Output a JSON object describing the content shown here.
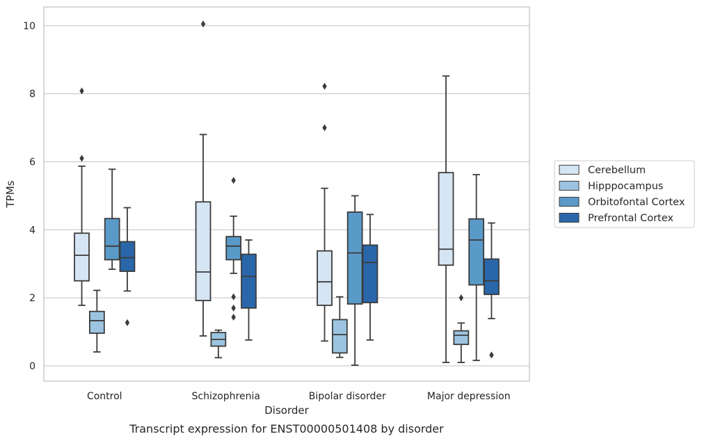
{
  "chart_data": {
    "type": "boxplot",
    "xlabel": "Disorder",
    "ylabel": "TPMs",
    "caption": "Transcript expression for ENST00000501408 by disorder",
    "ylim": [
      -0.45,
      10.55
    ],
    "yticks": [
      0,
      2,
      4,
      6,
      8,
      10
    ],
    "grid": "horizontal",
    "legend_position": "right",
    "categories": [
      "Control",
      "Schizophrenia",
      "Bipolar disorder",
      "Major depression"
    ],
    "series": [
      {
        "name": "Cerebellum",
        "color": "#d6e5f4",
        "boxes": [
          {
            "whislo": 1.78,
            "q1": 2.5,
            "med": 3.25,
            "q3": 3.9,
            "whishi": 5.87,
            "fliers": [
              8.08,
              6.1
            ]
          },
          {
            "whislo": 0.88,
            "q1": 1.92,
            "med": 2.76,
            "q3": 4.82,
            "whishi": 6.8,
            "fliers": [
              10.05
            ]
          },
          {
            "whislo": 0.73,
            "q1": 1.78,
            "med": 2.47,
            "q3": 3.38,
            "whishi": 5.22,
            "fliers": [
              8.22,
              7.0
            ]
          },
          {
            "whislo": 0.1,
            "q1": 2.96,
            "med": 3.43,
            "q3": 5.68,
            "whishi": 8.52,
            "fliers": []
          }
        ]
      },
      {
        "name": "Hipppocampus",
        "color": "#9cc4e0",
        "boxes": [
          {
            "whislo": 0.41,
            "q1": 0.96,
            "med": 1.33,
            "q3": 1.6,
            "whishi": 2.22,
            "fliers": []
          },
          {
            "whislo": 0.24,
            "q1": 0.58,
            "med": 0.78,
            "q3": 0.98,
            "whishi": 1.05,
            "fliers": []
          },
          {
            "whislo": 0.25,
            "q1": 0.38,
            "med": 0.92,
            "q3": 1.36,
            "whishi": 2.03,
            "fliers": []
          },
          {
            "whislo": 0.1,
            "q1": 0.63,
            "med": 0.9,
            "q3": 1.03,
            "whishi": 1.26,
            "fliers": [
              2.0
            ]
          }
        ]
      },
      {
        "name": "Orbitofontal Cortex",
        "color": "#5a9ac8",
        "boxes": [
          {
            "whislo": 2.84,
            "q1": 3.12,
            "med": 3.52,
            "q3": 4.33,
            "whishi": 5.78,
            "fliers": []
          },
          {
            "whislo": 2.72,
            "q1": 3.12,
            "med": 3.52,
            "q3": 3.8,
            "whishi": 4.4,
            "fliers": [
              5.45,
              2.03,
              1.7,
              1.43
            ]
          },
          {
            "whislo": 0.02,
            "q1": 1.82,
            "med": 3.32,
            "q3": 4.52,
            "whishi": 5.0,
            "fliers": []
          },
          {
            "whislo": 0.16,
            "q1": 2.38,
            "med": 3.7,
            "q3": 4.32,
            "whishi": 5.62,
            "fliers": []
          }
        ]
      },
      {
        "name": "Prefrontal Cortex",
        "color": "#2a67aa",
        "boxes": [
          {
            "whislo": 2.2,
            "q1": 2.78,
            "med": 3.18,
            "q3": 3.65,
            "whishi": 4.65,
            "fliers": [
              1.27
            ]
          },
          {
            "whislo": 0.76,
            "q1": 1.7,
            "med": 2.63,
            "q3": 3.28,
            "whishi": 3.7,
            "fliers": []
          },
          {
            "whislo": 0.76,
            "q1": 1.86,
            "med": 3.04,
            "q3": 3.55,
            "whishi": 4.45,
            "fliers": []
          },
          {
            "whislo": 1.39,
            "q1": 2.1,
            "med": 2.5,
            "q3": 3.14,
            "whishi": 4.2,
            "fliers": [
              0.32
            ]
          }
        ]
      }
    ]
  }
}
